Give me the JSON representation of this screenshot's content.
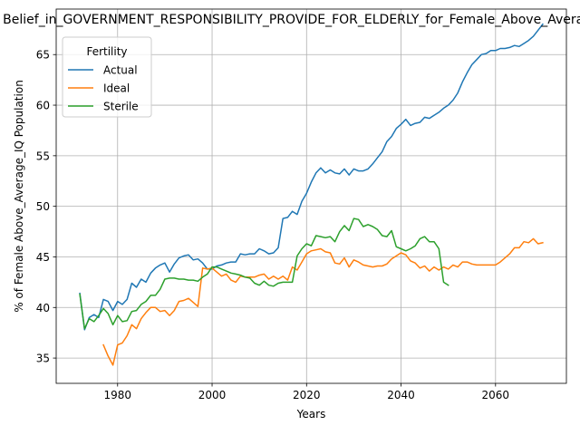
{
  "chart_data": {
    "type": "line",
    "title": "Belief_in_GOVERNMENT_RESPONSIBILITY_PROVIDE_FOR_ELDERLY_for_Female_Above_Average_IQ",
    "xlabel": "Years",
    "ylabel": "% of Female Above_Average_IQ Population",
    "xlim": [
      1967,
      2075
    ],
    "ylim": [
      32.5,
      69.5
    ],
    "xticks": [
      1980,
      2000,
      2020,
      2040,
      2060
    ],
    "yticks": [
      35,
      40,
      45,
      50,
      55,
      60,
      65
    ],
    "grid": true,
    "legend": {
      "title": "Fertility",
      "placement": "top-left"
    },
    "series": [
      {
        "name": "Actual",
        "color": "#1f77b4",
        "x": [
          1972,
          1973,
          1974,
          1975,
          1976,
          1977,
          1978,
          1979,
          1980,
          1981,
          1982,
          1983,
          1984,
          1985,
          1986,
          1987,
          1988,
          1989,
          1990,
          1991,
          1992,
          1993,
          1994,
          1995,
          1996,
          1997,
          1998,
          1999,
          2000,
          2001,
          2002,
          2003,
          2004,
          2005,
          2006,
          2007,
          2008,
          2009,
          2010,
          2011,
          2012,
          2013,
          2014,
          2015,
          2016,
          2017,
          2018,
          2019,
          2020,
          2021,
          2022,
          2023,
          2024,
          2025,
          2026,
          2027,
          2028,
          2029,
          2030,
          2031,
          2032,
          2033,
          2034,
          2035,
          2036,
          2037,
          2038,
          2039,
          2040,
          2041,
          2042,
          2043,
          2044,
          2045,
          2046,
          2047,
          2048,
          2049,
          2050,
          2051,
          2052,
          2053,
          2054,
          2055,
          2056,
          2057,
          2058,
          2059,
          2060,
          2061,
          2062,
          2063,
          2064,
          2065,
          2066,
          2067,
          2068,
          2069,
          2070
        ],
        "values": [
          41.4,
          37.8,
          39.0,
          39.3,
          39.0,
          40.8,
          40.6,
          39.7,
          40.6,
          40.3,
          40.8,
          42.4,
          42.0,
          42.8,
          42.5,
          43.4,
          43.9,
          44.2,
          44.4,
          43.5,
          44.3,
          44.9,
          45.1,
          45.2,
          44.7,
          44.8,
          44.4,
          43.8,
          43.8,
          44.1,
          44.2,
          44.4,
          44.5,
          44.5,
          45.3,
          45.2,
          45.3,
          45.3,
          45.8,
          45.6,
          45.3,
          45.4,
          45.9,
          48.8,
          48.9,
          49.5,
          49.2,
          50.5,
          51.3,
          52.4,
          53.3,
          53.8,
          53.3,
          53.6,
          53.3,
          53.2,
          53.7,
          53.1,
          53.7,
          53.5,
          53.5,
          53.7,
          54.2,
          54.8,
          55.4,
          56.4,
          56.9,
          57.7,
          58.1,
          58.6,
          58.0,
          58.2,
          58.3,
          58.8,
          58.7,
          59.0,
          59.3,
          59.7,
          60.0,
          60.5,
          61.2,
          62.3,
          63.2,
          64.0,
          64.5,
          65.0,
          65.1,
          65.4,
          65.4,
          65.6,
          65.6,
          65.7,
          65.9,
          65.8,
          66.1,
          66.4,
          66.8,
          67.4,
          68.0
        ]
      },
      {
        "name": "Ideal",
        "color": "#ff7f0e",
        "x": [
          1977,
          1978,
          1979,
          1980,
          1981,
          1982,
          1983,
          1984,
          1985,
          1986,
          1987,
          1988,
          1989,
          1990,
          1991,
          1992,
          1993,
          1994,
          1995,
          1996,
          1997,
          1998,
          1999,
          2000,
          2001,
          2002,
          2003,
          2004,
          2005,
          2006,
          2007,
          2008,
          2009,
          2010,
          2011,
          2012,
          2013,
          2014,
          2015,
          2016,
          2017,
          2018,
          2019,
          2020,
          2021,
          2022,
          2023,
          2024,
          2025,
          2026,
          2027,
          2028,
          2029,
          2030,
          2031,
          2032,
          2033,
          2034,
          2035,
          2036,
          2037,
          2038,
          2039,
          2040,
          2041,
          2042,
          2043,
          2044,
          2045,
          2046,
          2047,
          2048,
          2049,
          2050,
          2051,
          2052,
          2053,
          2054,
          2055,
          2056,
          2057,
          2058,
          2059,
          2060,
          2061,
          2062,
          2063,
          2064,
          2065,
          2066,
          2067,
          2068,
          2069,
          2070
        ],
        "values": [
          36.3,
          35.2,
          34.3,
          36.3,
          36.5,
          37.2,
          38.3,
          37.9,
          38.9,
          39.5,
          40.0,
          40.0,
          39.6,
          39.7,
          39.2,
          39.7,
          40.6,
          40.7,
          40.9,
          40.5,
          40.1,
          43.9,
          43.8,
          43.9,
          43.5,
          43.1,
          43.3,
          42.7,
          42.5,
          43.1,
          43.0,
          43.0,
          43.0,
          43.2,
          43.3,
          42.8,
          43.1,
          42.8,
          43.1,
          42.7,
          44.0,
          43.7,
          44.5,
          45.3,
          45.6,
          45.7,
          45.8,
          45.5,
          45.4,
          44.4,
          44.3,
          44.9,
          44.0,
          44.7,
          44.5,
          44.2,
          44.1,
          44.0,
          44.1,
          44.1,
          44.3,
          44.8,
          45.1,
          45.4,
          45.2,
          44.6,
          44.4,
          43.9,
          44.1,
          43.6,
          44.0,
          43.7,
          44.0,
          43.8,
          44.2,
          44.0,
          44.5,
          44.5,
          44.3,
          44.2,
          44.2,
          44.2,
          44.2,
          44.2,
          44.5,
          44.9,
          45.3,
          45.9,
          45.9,
          46.5,
          46.4,
          46.8,
          46.3,
          46.4
        ]
      },
      {
        "name": "Sterile",
        "color": "#2ca02c",
        "x": [
          1972,
          1973,
          1974,
          1975,
          1976,
          1977,
          1978,
          1979,
          1980,
          1981,
          1982,
          1983,
          1984,
          1985,
          1986,
          1987,
          1988,
          1989,
          1990,
          1991,
          1992,
          1993,
          1994,
          1995,
          1996,
          1997,
          1998,
          1999,
          2000,
          2001,
          2002,
          2003,
          2004,
          2005,
          2006,
          2007,
          2008,
          2009,
          2010,
          2011,
          2012,
          2013,
          2014,
          2015,
          2016,
          2017,
          2018,
          2019,
          2020,
          2021,
          2022,
          2023,
          2024,
          2025,
          2026,
          2027,
          2028,
          2029,
          2030,
          2031,
          2032,
          2033,
          2034,
          2035,
          2036,
          2037,
          2038,
          2039,
          2040,
          2041,
          2042,
          2043,
          2044,
          2045,
          2046,
          2047,
          2048,
          2049,
          2050
        ],
        "values": [
          41.3,
          37.9,
          38.9,
          38.6,
          39.2,
          39.9,
          39.4,
          38.3,
          39.2,
          38.6,
          38.7,
          39.6,
          39.7,
          40.3,
          40.6,
          41.2,
          41.2,
          41.8,
          42.8,
          42.9,
          42.9,
          42.8,
          42.8,
          42.7,
          42.7,
          42.6,
          43.0,
          43.3,
          44.0,
          44.0,
          43.8,
          43.6,
          43.4,
          43.3,
          43.2,
          43.0,
          42.9,
          42.4,
          42.2,
          42.6,
          42.2,
          42.1,
          42.4,
          42.5,
          42.5,
          42.5,
          45.1,
          45.8,
          46.3,
          46.1,
          47.1,
          47.0,
          46.9,
          47.0,
          46.5,
          47.5,
          48.1,
          47.6,
          48.8,
          48.7,
          48.0,
          48.2,
          48.0,
          47.7,
          47.1,
          47.0,
          47.6,
          46.0,
          45.8,
          45.6,
          45.8,
          46.1,
          46.8,
          47.0,
          46.5,
          46.5,
          45.8,
          42.5,
          42.2
        ]
      }
    ]
  }
}
